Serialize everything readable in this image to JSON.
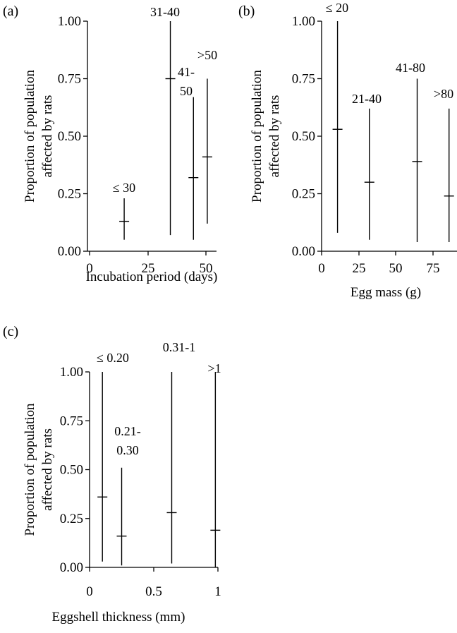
{
  "ylabel_line1": "Proportion of population",
  "ylabel_line2": "affected by rats",
  "chart_data": [
    {
      "panel": "(a)",
      "type": "scatter",
      "xlabel": "Incubation period (days)",
      "ylabel": "Proportion of population affected by rats",
      "xlim": [
        0,
        55
      ],
      "ylim": [
        0,
        1
      ],
      "xticks": [
        "0",
        "25",
        "50"
      ],
      "yticks": [
        "0.00",
        "0.25",
        "0.50",
        "0.75",
        "1.00"
      ],
      "points": [
        {
          "label": [
            "≤ 30"
          ],
          "x": 15,
          "y": 0.13,
          "low": 0.05,
          "high": 0.23
        },
        {
          "label": [
            "31-40"
          ],
          "x": 35,
          "y": 0.75,
          "low": 0.07,
          "high": 1.0
        },
        {
          "label": [
            "41-",
            "50"
          ],
          "x": 45,
          "y": 0.32,
          "low": 0.05,
          "high": 0.67
        },
        {
          "label": [
            ">50"
          ],
          "x": 51,
          "y": 0.41,
          "low": 0.12,
          "high": 0.75
        }
      ]
    },
    {
      "panel": "(b)",
      "type": "scatter",
      "xlabel": "Egg mass (g)",
      "ylabel": "Proportion of population affected by rats",
      "xlim": [
        0,
        85
      ],
      "ylim": [
        0,
        1
      ],
      "xticks": [
        "0",
        "25",
        "50",
        "75"
      ],
      "yticks": [
        "0.00",
        "0.25",
        "0.50",
        "0.75",
        "1.00"
      ],
      "points": [
        {
          "label": [
            "≤ 20"
          ],
          "x": 10,
          "y": 0.53,
          "low": 0.08,
          "high": 1.0
        },
        {
          "label": [
            "21-40"
          ],
          "x": 30,
          "y": 0.3,
          "low": 0.05,
          "high": 0.62
        },
        {
          "label": [
            "41-80"
          ],
          "x": 60,
          "y": 0.39,
          "low": 0.04,
          "high": 0.75
        },
        {
          "label": [
            ">80"
          ],
          "x": 80,
          "y": 0.24,
          "low": 0.04,
          "high": 0.62
        }
      ]
    },
    {
      "panel": "(c)",
      "type": "scatter",
      "xlabel": "Eggshell thickness (mm)",
      "ylabel": "Proportion of population affected by rats",
      "xlim": [
        0,
        1
      ],
      "ylim": [
        0,
        1
      ],
      "xticks": [
        "0",
        "0.5",
        "1"
      ],
      "yticks": [
        "0.00",
        "0.25",
        "0.50",
        "0.75",
        "1.00"
      ],
      "points": [
        {
          "label": [
            "≤ 0.20"
          ],
          "x": 0.1,
          "y": 0.36,
          "low": 0.03,
          "high": 1.0
        },
        {
          "label": [
            "0.21-",
            "0.30"
          ],
          "x": 0.25,
          "y": 0.16,
          "low": 0.01,
          "high": 0.51
        },
        {
          "label": [
            "0.31-1"
          ],
          "x": 0.64,
          "y": 0.28,
          "low": 0.02,
          "high": 1.0
        },
        {
          "label": [
            ">1"
          ],
          "x": 0.98,
          "y": 0.19,
          "low": 0.0,
          "high": 1.0
        }
      ]
    }
  ]
}
